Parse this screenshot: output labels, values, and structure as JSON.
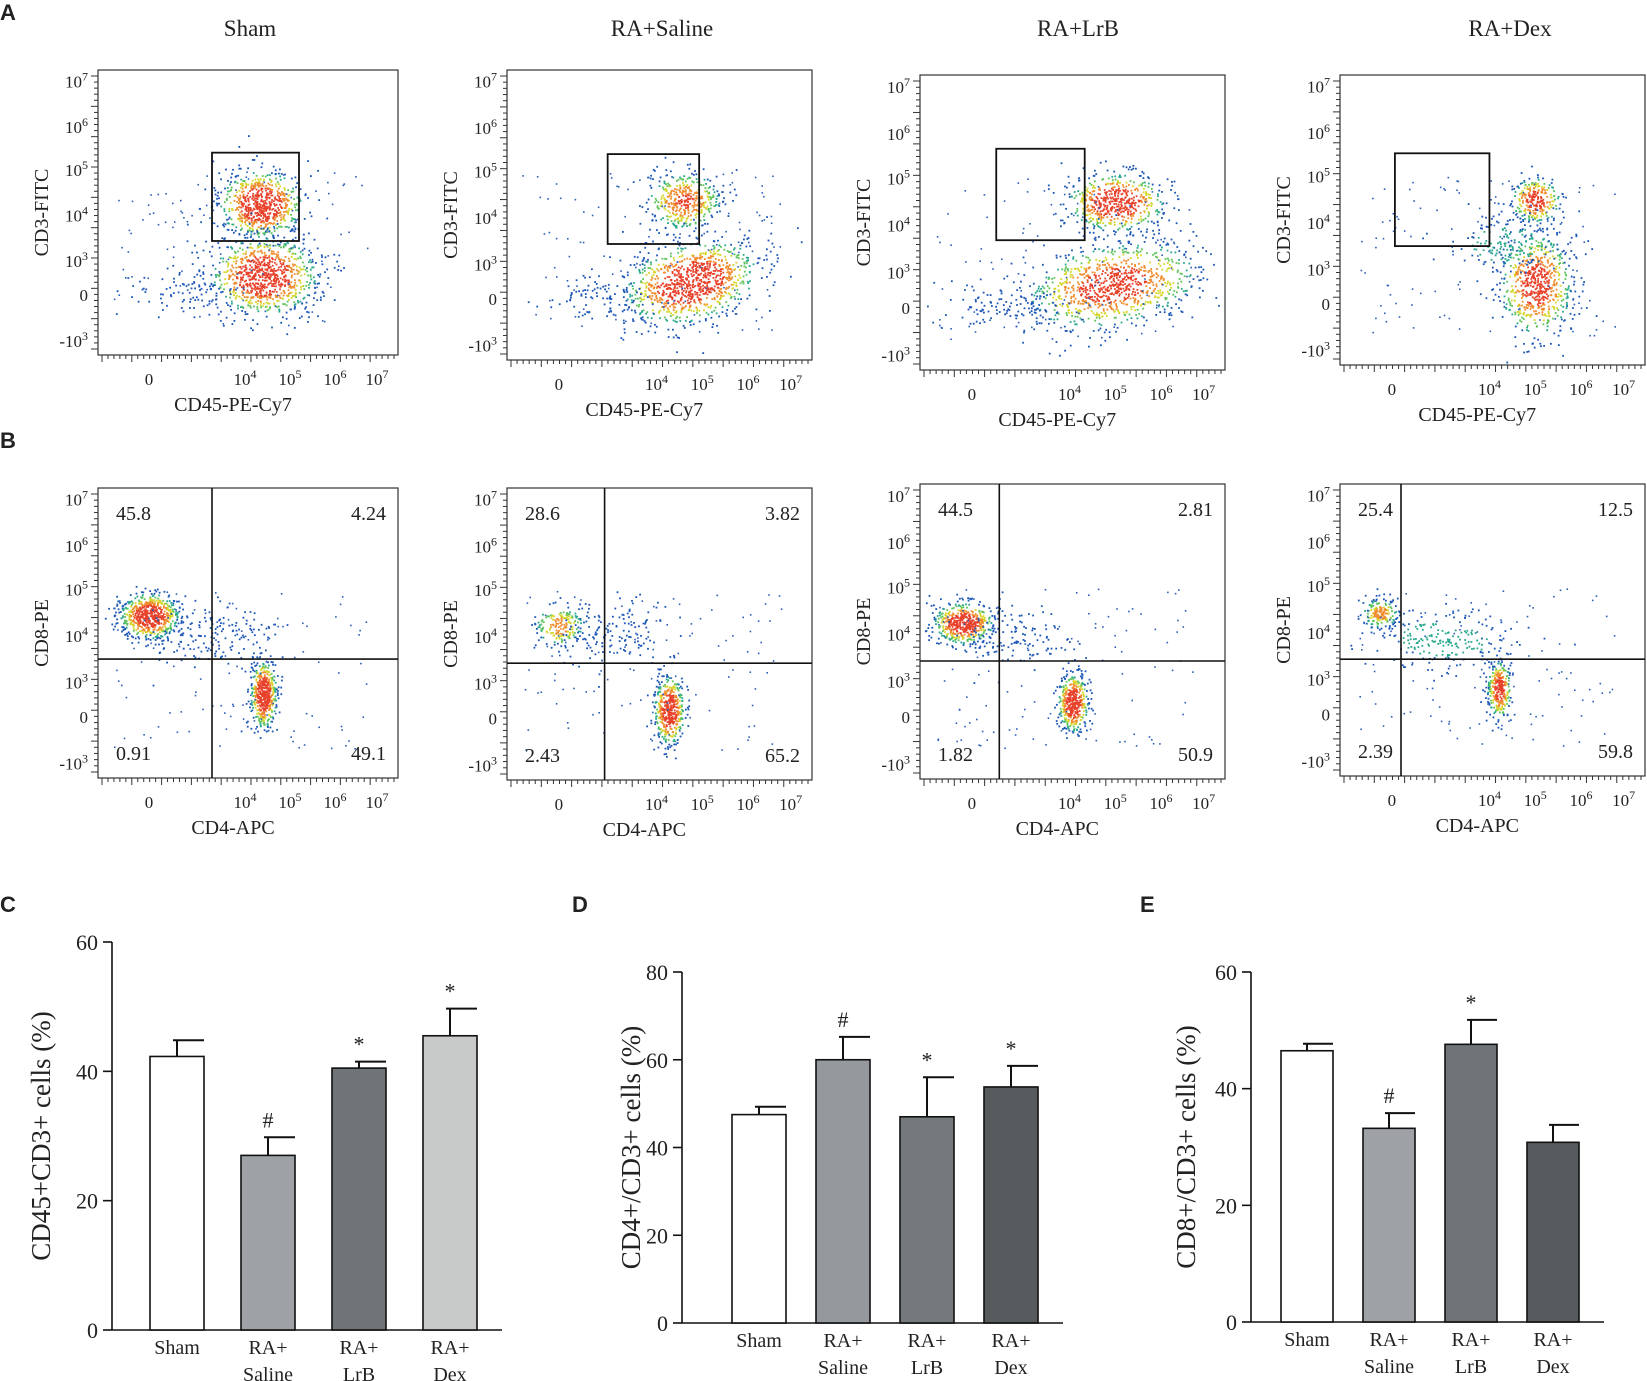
{
  "figure": {
    "panel_labels": [
      "A",
      "B",
      "C",
      "D",
      "E"
    ],
    "group_titles": [
      "Sham",
      "RA+Saline",
      "RA+LrB",
      "RA+Dex"
    ],
    "panel_a": {
      "xlabel": "CD45-PE-Cy7",
      "ylabel": "CD3-FITC"
    },
    "panel_b": {
      "xlabel": "CD4-APC",
      "ylabel": "CD8-PE",
      "quadrants": [
        {
          "ul": "45.8",
          "ur": "4.24",
          "ll": "0.91",
          "lr": "49.1"
        },
        {
          "ul": "28.6",
          "ur": "3.82",
          "ll": "2.43",
          "lr": "65.2"
        },
        {
          "ul": "44.5",
          "ur": "2.81",
          "ll": "1.82",
          "lr": "50.9"
        },
        {
          "ul": "25.4",
          "ur": "12.5",
          "ll": "2.39",
          "lr": "59.8"
        }
      ]
    },
    "ytick_labels": [
      {
        "base": "10",
        "exp": "7"
      },
      {
        "base": "10",
        "exp": "6"
      },
      {
        "base": "10",
        "exp": "5"
      },
      {
        "base": "10",
        "exp": "4"
      },
      {
        "base": "10",
        "exp": "3"
      },
      {
        "base": "0",
        "exp": ""
      },
      {
        "base": "-10",
        "exp": "3"
      }
    ],
    "xtick_labels": [
      {
        "base": "0",
        "exp": ""
      },
      {
        "base": "10",
        "exp": "4"
      },
      {
        "base": "10",
        "exp": "5"
      },
      {
        "base": "10",
        "exp": "6"
      },
      {
        "base": "10",
        "exp": "7"
      }
    ]
  },
  "chart_data": [
    {
      "type": "bar",
      "panel": "C",
      "categories": [
        [
          "Sham"
        ],
        [
          "RA+",
          "Saline"
        ],
        [
          "RA+",
          "LrB"
        ],
        [
          "RA+",
          "Dex"
        ]
      ],
      "values": [
        42.3,
        27.0,
        40.5,
        45.5
      ],
      "errors": [
        2.5,
        2.8,
        1.0,
        4.2
      ],
      "annotations": [
        "",
        "#",
        "*",
        "*"
      ],
      "colors": [
        "#ffffff",
        "#9ea2a6",
        "#717476",
        "#c8c9c9"
      ],
      "ylabel": "CD45+CD3+ cells (%)",
      "ylim": [
        0,
        60
      ],
      "yticks": [
        0,
        20,
        40,
        60
      ]
    },
    {
      "type": "bar",
      "panel": "D",
      "categories": [
        [
          "Sham"
        ],
        [
          "RA+",
          "Saline"
        ],
        [
          "RA+",
          "LrB"
        ],
        [
          "RA+",
          "Dex"
        ]
      ],
      "values": [
        47.5,
        60.0,
        47.0,
        53.8
      ],
      "errors": [
        1.8,
        5.2,
        9.0,
        4.8
      ],
      "annotations": [
        "",
        "#",
        "*",
        "*"
      ],
      "colors": [
        "#ffffff",
        "#95999d",
        "#76797c",
        "#585b5d"
      ],
      "ylabel": "CD4+/CD3+ cells (%)",
      "ylim": [
        0,
        80
      ],
      "yticks": [
        0,
        20,
        40,
        60,
        80
      ]
    },
    {
      "type": "bar",
      "panel": "E",
      "categories": [
        [
          "Sham"
        ],
        [
          "RA+",
          "Saline"
        ],
        [
          "RA+",
          "LrB"
        ],
        [
          "RA+",
          "Dex"
        ]
      ],
      "values": [
        46.5,
        33.2,
        47.6,
        30.8
      ],
      "errors": [
        1.2,
        2.6,
        4.2,
        3.0
      ],
      "annotations": [
        "",
        "#",
        "*",
        ""
      ],
      "colors": [
        "#ffffff",
        "#9ea2a6",
        "#717476",
        "#585b5d"
      ],
      "ylabel": "CD8+/CD3+ cells (%)",
      "ylim": [
        0,
        60
      ],
      "yticks": [
        0,
        20,
        40,
        60
      ]
    }
  ]
}
